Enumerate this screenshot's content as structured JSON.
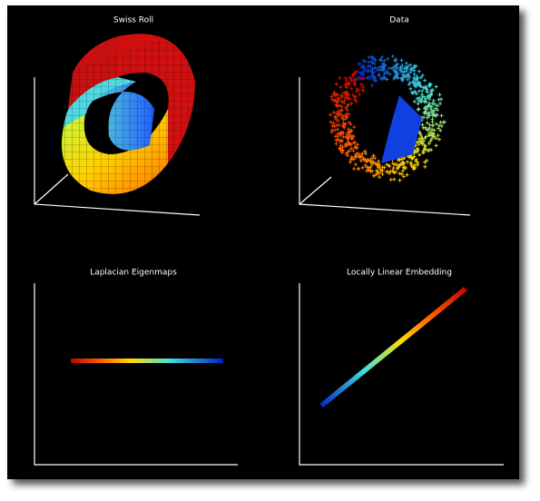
{
  "panels": [
    {
      "title": "Swiss Roll"
    },
    {
      "title": "Data"
    },
    {
      "title": "Laplacian Eigenmaps"
    },
    {
      "title": "Locally Linear Embedding"
    }
  ]
}
